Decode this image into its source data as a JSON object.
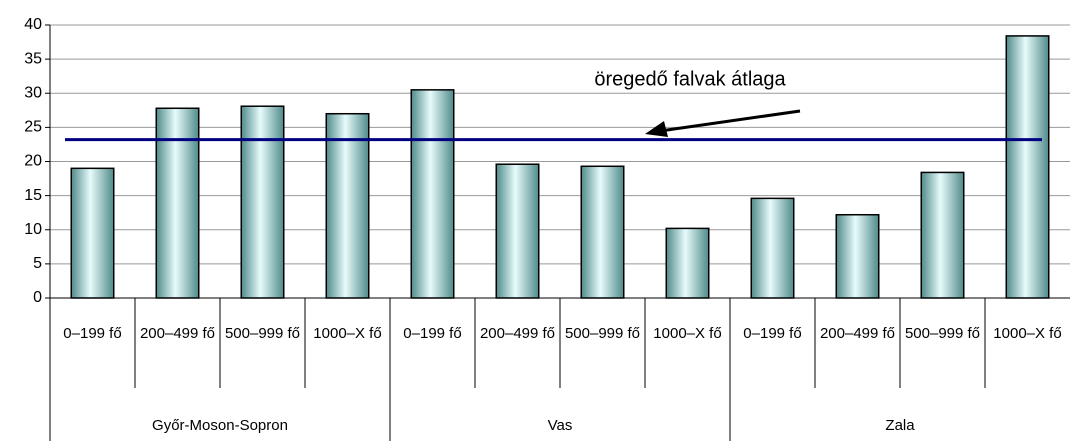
{
  "chart_data": {
    "type": "bar",
    "categories": [
      "0–199 fő",
      "200–499 fő",
      "500–999 fő",
      "1000–X fő",
      "0–199 fő",
      "200–499 fő",
      "500–999 fő",
      "1000–X fő",
      "0–199 fő",
      "200–499 fő",
      "500–999 fő",
      "1000–X fő"
    ],
    "groups": [
      "Győr-Moson-Sopron",
      "Vas",
      "Zala"
    ],
    "values": [
      19,
      27.8,
      28.1,
      27,
      30.5,
      19.6,
      19.3,
      10.2,
      14.6,
      12.2,
      18.4,
      38.4
    ],
    "color": "#8fc4c4",
    "ylim": [
      0,
      40
    ],
    "yticks": [
      0,
      5,
      10,
      15,
      20,
      25,
      30,
      35,
      40
    ],
    "grid": true,
    "reference_line": {
      "value": 23.2,
      "label": "öregedő falvak átlaga",
      "color": "#000080"
    }
  }
}
